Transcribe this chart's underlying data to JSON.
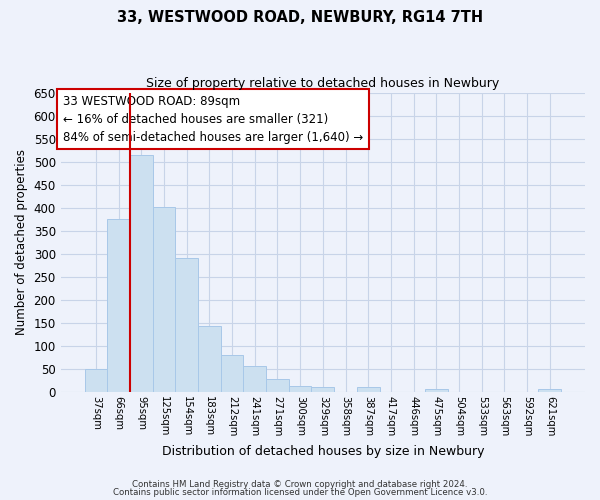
{
  "title": "33, WESTWOOD ROAD, NEWBURY, RG14 7TH",
  "subtitle": "Size of property relative to detached houses in Newbury",
  "xlabel": "Distribution of detached houses by size in Newbury",
  "ylabel": "Number of detached properties",
  "footnote1": "Contains HM Land Registry data © Crown copyright and database right 2024.",
  "footnote2": "Contains public sector information licensed under the Open Government Licence v3.0.",
  "bar_labels": [
    "37sqm",
    "66sqm",
    "95sqm",
    "125sqm",
    "154sqm",
    "183sqm",
    "212sqm",
    "241sqm",
    "271sqm",
    "300sqm",
    "329sqm",
    "358sqm",
    "387sqm",
    "417sqm",
    "446sqm",
    "475sqm",
    "504sqm",
    "533sqm",
    "563sqm",
    "592sqm",
    "621sqm"
  ],
  "bar_values": [
    50,
    376,
    516,
    401,
    290,
    142,
    80,
    55,
    27,
    12,
    10,
    0,
    10,
    0,
    0,
    5,
    0,
    0,
    0,
    0,
    5
  ],
  "bar_color": "#cce0f0",
  "bar_edge_color": "#a8c8e8",
  "highlight_line_color": "#cc0000",
  "annotation_title": "33 WESTWOOD ROAD: 89sqm",
  "annotation_line1": "← 16% of detached houses are smaller (321)",
  "annotation_line2": "84% of semi-detached houses are larger (1,640) →",
  "annotation_box_color": "#ffffff",
  "annotation_box_edge": "#cc0000",
  "ylim": [
    0,
    650
  ],
  "yticks": [
    0,
    50,
    100,
    150,
    200,
    250,
    300,
    350,
    400,
    450,
    500,
    550,
    600,
    650
  ],
  "grid_color": "#c8d4e8",
  "background_color": "#eef2fb"
}
